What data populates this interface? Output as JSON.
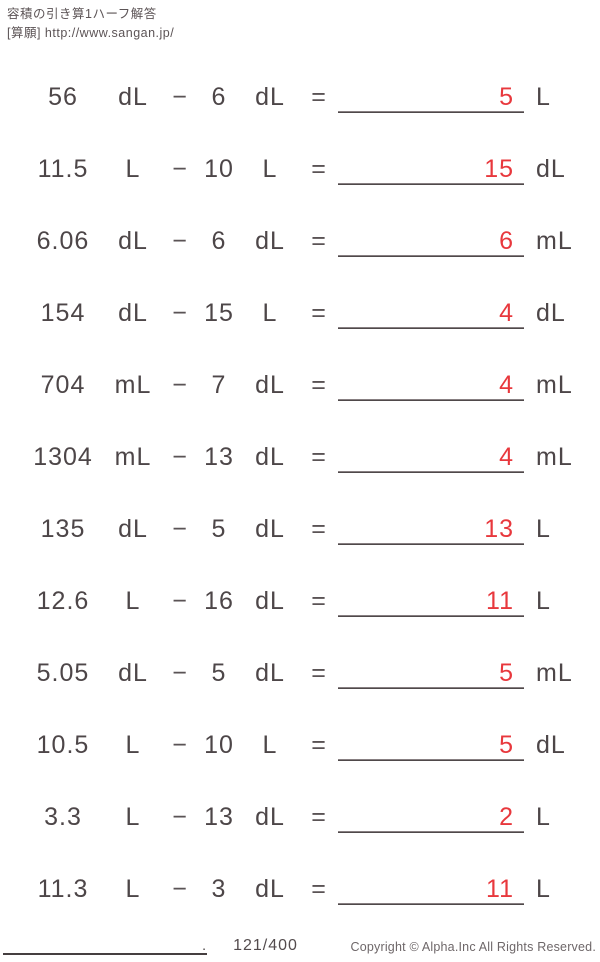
{
  "header": {
    "title": "容積の引き算1ハーフ解答",
    "source": "[算願] http://www.sangan.jp/"
  },
  "operators": {
    "minus": "−",
    "equals": "="
  },
  "problems": [
    {
      "a": "56",
      "ua": "dL",
      "b": "6",
      "ub": "dL",
      "ans": "5",
      "uc": "L"
    },
    {
      "a": "11.5",
      "ua": "L",
      "b": "10",
      "ub": "L",
      "ans": "15",
      "uc": "dL"
    },
    {
      "a": "6.06",
      "ua": "dL",
      "b": "6",
      "ub": "dL",
      "ans": "6",
      "uc": "mL"
    },
    {
      "a": "154",
      "ua": "dL",
      "b": "15",
      "ub": "L",
      "ans": "4",
      "uc": "dL"
    },
    {
      "a": "704",
      "ua": "mL",
      "b": "7",
      "ub": "dL",
      "ans": "4",
      "uc": "mL"
    },
    {
      "a": "1304",
      "ua": "mL",
      "b": "13",
      "ub": "dL",
      "ans": "4",
      "uc": "mL"
    },
    {
      "a": "135",
      "ua": "dL",
      "b": "5",
      "ub": "dL",
      "ans": "13",
      "uc": "L"
    },
    {
      "a": "12.6",
      "ua": "L",
      "b": "16",
      "ub": "dL",
      "ans": "11",
      "uc": "L"
    },
    {
      "a": "5.05",
      "ua": "dL",
      "b": "5",
      "ub": "dL",
      "ans": "5",
      "uc": "mL"
    },
    {
      "a": "10.5",
      "ua": "L",
      "b": "10",
      "ub": "L",
      "ans": "5",
      "uc": "dL"
    },
    {
      "a": "3.3",
      "ua": "L",
      "b": "13",
      "ub": "dL",
      "ans": "2",
      "uc": "L"
    },
    {
      "a": "11.3",
      "ua": "L",
      "b": "3",
      "ub": "dL",
      "ans": "11",
      "uc": "L"
    }
  ],
  "footer": {
    "name_line_dot": ".",
    "page": "121/400",
    "copyright": "Copyright © Alpha.Inc All Rights Reserved."
  },
  "colors": {
    "text": "#4d4648",
    "answer_red": "#e8383d",
    "underline_dark": "#332e2f"
  }
}
